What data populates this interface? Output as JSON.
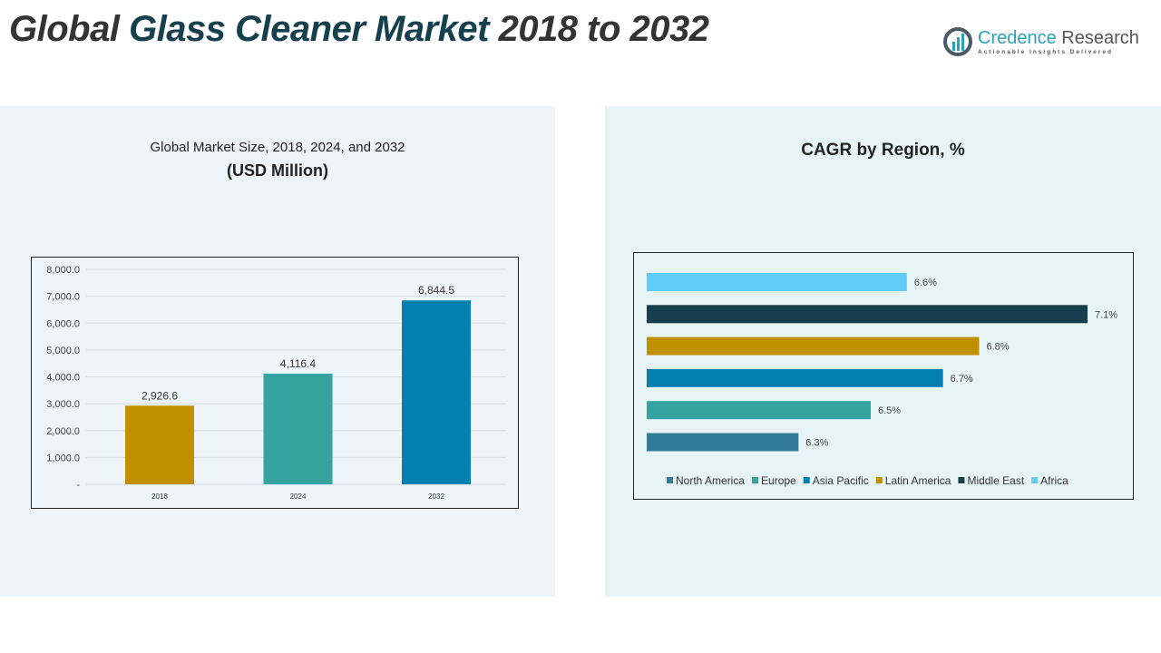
{
  "header": {
    "title_part1": "Global ",
    "title_part2": "Glass Cleaner Market",
    "title_part3": " 2018 to 2032"
  },
  "logo": {
    "name1": "Credence",
    "name2": " Research",
    "tagline": "Actionable Insights Delivered",
    "icon": "bar-chart-logo-icon"
  },
  "left": {
    "title": "Global Market Size, 2018, 2024, and 2032",
    "subtitle": "(USD Million)"
  },
  "right": {
    "title": "CAGR by Region, %"
  },
  "chart_data": [
    {
      "type": "bar",
      "title": "Global Market Size, 2018, 2024, and 2032",
      "ylabel": "(USD Million)",
      "categories": [
        "2018",
        "2024",
        "2032"
      ],
      "values": [
        2926.6,
        4116.4,
        6844.5
      ],
      "labels": [
        "2,926.6",
        "4,116.4",
        "6,844.5"
      ],
      "colors": [
        "#c09000",
        "#35a3a0",
        "#0480b0"
      ],
      "ylim": [
        0,
        8000
      ],
      "yticks": [
        "-",
        "1,000.0",
        "2,000.0",
        "3,000.0",
        "4,000.0",
        "5,000.0",
        "6,000.0",
        "7,000.0",
        "8,000.0"
      ],
      "grid": true
    },
    {
      "type": "bar",
      "orientation": "horizontal",
      "title": "CAGR by Region, %",
      "categories": [
        "Africa",
        "Middle East",
        "Latin America",
        "Asia Pacific",
        "Europe",
        "North America"
      ],
      "values": [
        6.6,
        7.1,
        6.8,
        6.7,
        6.5,
        6.3
      ],
      "labels": [
        "6.6%",
        "7.1%",
        "6.8%",
        "6.7%",
        "6.5%",
        "6.3%"
      ],
      "colors": [
        "#5fcdf5",
        "#173e4c",
        "#c09000",
        "#0480b0",
        "#35a3a0",
        "#327a9a"
      ],
      "xlim": [
        5.88,
        7.2
      ],
      "legend": "bottom",
      "legend_entries": [
        "North America",
        "Europe",
        "Asia Pacific",
        "Latin America",
        "Middle East",
        "Africa"
      ],
      "legend_colors": [
        "#327a9a",
        "#35a3a0",
        "#0480b0",
        "#c09000",
        "#173e4c",
        "#5fcdf5"
      ]
    }
  ]
}
